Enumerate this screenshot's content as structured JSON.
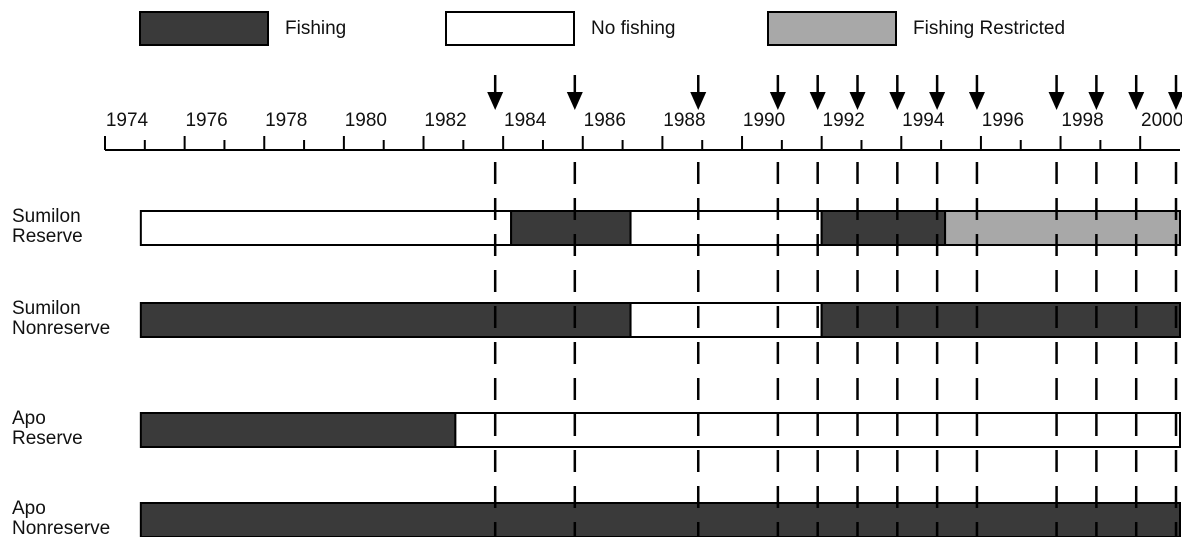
{
  "chart_data": {
    "type": "timeline",
    "legend": [
      {
        "name": "Fishing",
        "color": "#3a3a3a"
      },
      {
        "name": "No fishing",
        "color": "#ffffff"
      },
      {
        "name": "Fishing Restricted",
        "color": "#a8a8a8"
      }
    ],
    "xlim": [
      1974,
      2001
    ],
    "xticks": [
      1974,
      1976,
      1978,
      1980,
      1982,
      1984,
      1986,
      1988,
      1990,
      1992,
      1994,
      1996,
      1998,
      2000
    ],
    "surveys": [
      1983.8,
      1985.8,
      1988.9,
      1990.9,
      1991.9,
      1992.9,
      1993.9,
      1994.9,
      1995.9,
      1997.9,
      1998.9,
      1999.9,
      2000.9
    ],
    "rows": [
      {
        "label": [
          "Sumilon",
          "Reserve"
        ],
        "segments": [
          {
            "start": 1974.9,
            "end": 1984.2,
            "state": 1
          },
          {
            "start": 1984.2,
            "end": 1987.2,
            "state": 0
          },
          {
            "start": 1987.2,
            "end": 1992,
            "state": 1
          },
          {
            "start": 1992,
            "end": 1995.1,
            "state": 0
          },
          {
            "start": 1995.1,
            "end": 2001,
            "state": 2
          }
        ]
      },
      {
        "label": [
          "Sumilon",
          "Nonreserve"
        ],
        "segments": [
          {
            "start": 1974.9,
            "end": 1987.2,
            "state": 0
          },
          {
            "start": 1987.2,
            "end": 1992,
            "state": 1
          },
          {
            "start": 1992,
            "end": 2001,
            "state": 0
          }
        ]
      },
      {
        "label": [
          "Apo",
          "Reserve"
        ],
        "segments": [
          {
            "start": 1974.9,
            "end": 1982.8,
            "state": 0
          },
          {
            "start": 1982.8,
            "end": 2001,
            "state": 1
          }
        ]
      },
      {
        "label": [
          "Apo",
          "Nonreserve"
        ],
        "segments": [
          {
            "start": 1974.9,
            "end": 2001,
            "state": 0
          }
        ]
      }
    ]
  }
}
